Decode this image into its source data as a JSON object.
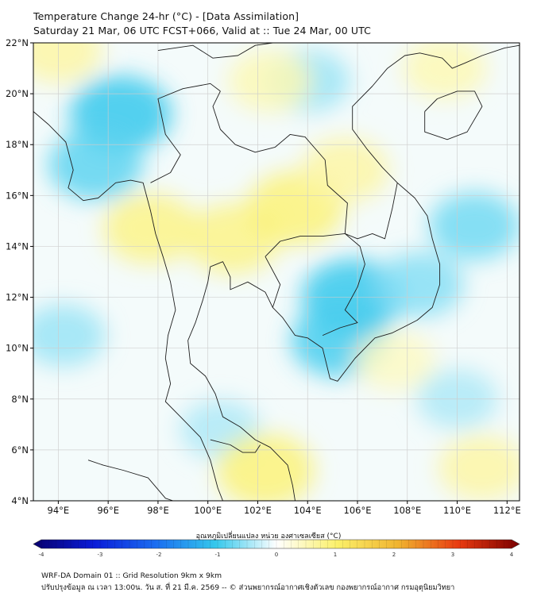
{
  "header": {
    "title_line1": "Temperature Change 24-hr (°C) - [Data Assimilation]",
    "title_line2": "Saturday 21 Mar, 06 UTC FCST+066, Valid at :: Tue 24 Mar, 00 UTC"
  },
  "map": {
    "lat_range": [
      4,
      22
    ],
    "lon_range": [
      93,
      112.5
    ],
    "lat_ticks": [
      "4°N",
      "6°N",
      "8°N",
      "10°N",
      "12°N",
      "14°N",
      "16°N",
      "18°N",
      "20°N",
      "22°N"
    ],
    "lon_ticks": [
      "94°E",
      "96°E",
      "98°E",
      "100°E",
      "102°E",
      "104°E",
      "106°E",
      "108°E",
      "110°E",
      "112°E"
    ],
    "lat_values": [
      4,
      6,
      8,
      10,
      12,
      14,
      16,
      18,
      20,
      22
    ],
    "lon_values": [
      94,
      96,
      98,
      100,
      102,
      104,
      106,
      108,
      110,
      112
    ],
    "gridlines": true,
    "coastline_color": "#222222",
    "field_anomalies": [
      {
        "type": "cool",
        "lon": 96.5,
        "lat": 19.2,
        "value": -1.0
      },
      {
        "type": "cool",
        "lon": 95.5,
        "lat": 17.2,
        "value": -0.8
      },
      {
        "type": "cool",
        "lon": 105.8,
        "lat": 12.0,
        "value": -1.0
      },
      {
        "type": "cool",
        "lon": 105.3,
        "lat": 10.3,
        "value": -0.9
      },
      {
        "type": "cool",
        "lon": 110.7,
        "lat": 14.8,
        "value": -0.7
      },
      {
        "type": "cool",
        "lon": 108.5,
        "lat": 12.5,
        "value": -0.6
      },
      {
        "type": "cool",
        "lon": 94.2,
        "lat": 10.5,
        "value": -0.5
      },
      {
        "type": "cool",
        "lon": 104.0,
        "lat": 20.5,
        "value": -0.5
      },
      {
        "type": "cool",
        "lon": 100.5,
        "lat": 6.8,
        "value": -0.4
      },
      {
        "type": "cool",
        "lon": 110.0,
        "lat": 8.0,
        "value": -0.4
      },
      {
        "type": "warm",
        "lon": 101.0,
        "lat": 14.3,
        "value": 0.8
      },
      {
        "type": "warm",
        "lon": 103.5,
        "lat": 15.5,
        "value": 0.9
      },
      {
        "type": "warm",
        "lon": 97.7,
        "lat": 14.7,
        "value": 0.8
      },
      {
        "type": "warm",
        "lon": 102.3,
        "lat": 5.2,
        "value": 0.9
      },
      {
        "type": "warm",
        "lon": 105.5,
        "lat": 17.0,
        "value": 0.6
      },
      {
        "type": "warm",
        "lon": 102.5,
        "lat": 20.5,
        "value": 0.5
      },
      {
        "type": "warm",
        "lon": 94.0,
        "lat": 21.7,
        "value": 0.6
      },
      {
        "type": "warm",
        "lon": 111.0,
        "lat": 5.3,
        "value": 0.6
      },
      {
        "type": "warm",
        "lon": 107.5,
        "lat": 9.5,
        "value": 0.4
      },
      {
        "type": "warm",
        "lon": 109.5,
        "lat": 21.0,
        "value": 0.5
      }
    ]
  },
  "colorbar": {
    "title": "อุณหภูมิเปลี่ยนแปลง หน่วย องศาเซลเซียส (°C)",
    "min": -4,
    "max": 4,
    "tick_labels": [
      "-4",
      "-3",
      "-2",
      "-1",
      "0",
      "1",
      "2",
      "3",
      "4"
    ],
    "tick_values": [
      -4,
      -3,
      -2,
      -1,
      0,
      1,
      2,
      3,
      4
    ],
    "color_stops": [
      "#08006e",
      "#0a1cd8",
      "#1a6cf0",
      "#35c8ec",
      "#ffffff",
      "#fbf06a",
      "#f0b430",
      "#e83a10",
      "#7a0000"
    ]
  },
  "footer": {
    "line1": "WRF-DA Domain 01 :: Grid Resolution 9km x 9km",
    "line2": "ปรับปรุงข้อมูล ณ เวลา 13:00น. วัน ส. ที่ 21 มี.ค. 2569 -- © ส่วนพยากรณ์อากาศเชิงตัวเลข กองพยากรณ์อากาศ กรมอุตุนิยมวิทยา"
  }
}
